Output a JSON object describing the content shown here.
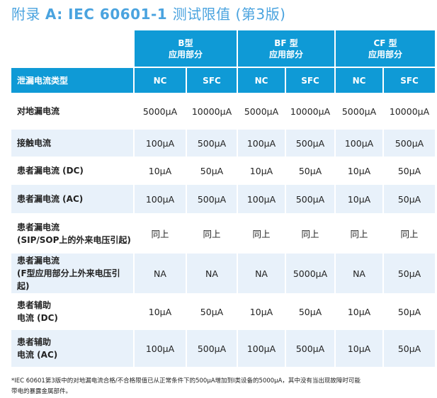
{
  "title": {
    "prefix": "附录 ",
    "main": "A: IEC 60601-1 ",
    "suffix": "测试限值 (第3版)"
  },
  "table": {
    "groups": [
      {
        "line1": "B型",
        "line2": "应用部分"
      },
      {
        "line1": "BF 型",
        "line2": "应用部分"
      },
      {
        "line1": "CF 型",
        "line2": "应用部分"
      }
    ],
    "row_header": "泄漏电流类型",
    "subcols": [
      "NC",
      "SFC",
      "NC",
      "SFC",
      "NC",
      "SFC"
    ],
    "rows": [
      {
        "label": [
          "对地漏电流"
        ],
        "values": [
          "5000μA",
          "10000μA",
          "5000μA",
          "10000μA",
          "5000μA",
          "10000μA"
        ]
      },
      {
        "label": [
          "接触电流"
        ],
        "values": [
          "100μA",
          "500μA",
          "100μA",
          "500μA",
          "100μA",
          "500μA"
        ]
      },
      {
        "label": [
          "患者漏电流 (DC)"
        ],
        "values": [
          "10μA",
          "50μA",
          "10μA",
          "50μA",
          "10μA",
          "50μA"
        ]
      },
      {
        "label": [
          "患者漏电流 (AC)"
        ],
        "values": [
          "100μA",
          "500μA",
          "100μA",
          "500μA",
          "10μA",
          "50μA"
        ]
      },
      {
        "label": [
          "患者漏电流",
          "(SIP/SOP上的外来电压引起)"
        ],
        "values": [
          "同上",
          "同上",
          "同上",
          "同上",
          "同上",
          "同上"
        ]
      },
      {
        "label": [
          "患者漏电流",
          "(F型应用部分上外来电压引起)"
        ],
        "values": [
          "NA",
          "NA",
          "NA",
          "5000μA",
          "NA",
          "50μA"
        ]
      },
      {
        "label": [
          "患者辅助",
          "电流 (DC)"
        ],
        "values": [
          "10μA",
          "50μA",
          "10μA",
          "50μA",
          "10μA",
          "50μA"
        ]
      },
      {
        "label": [
          "患者辅助",
          "电流 (AC)"
        ],
        "values": [
          "100μA",
          "500μA",
          "100μA",
          "500μA",
          "10μA",
          "50μA"
        ]
      }
    ]
  },
  "footnote": {
    "line1": "*IEC 60601第3版中的对地漏电流合格/不合格限值已从正常条件下的500μA增加到I类设备的5000μA，其中没有当出现故障时可能",
    "line2": "带电的暴露金属部件。"
  },
  "colors": {
    "header": "#0f9ad6",
    "title": "#4aa3df",
    "alt_row": "#e8f1fa"
  }
}
